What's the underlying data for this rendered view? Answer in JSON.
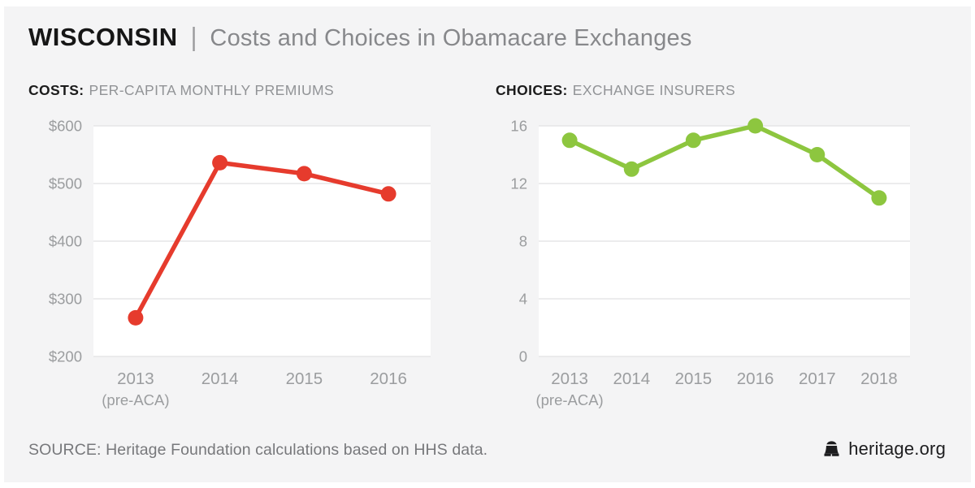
{
  "header": {
    "region": "WISCONSIN",
    "separator": "|",
    "subtitle": "Costs and Choices in Obamacare Exchanges"
  },
  "sections": {
    "costs_bold": "COSTS:",
    "costs_rest": "PER-CAPITA MONTHLY PREMIUMS",
    "choices_bold": "CHOICES:",
    "choices_rest": "EXCHANGE INSURERS"
  },
  "footer": {
    "source": "SOURCE: Heritage Foundation calculations based on HHS data.",
    "brand": "heritage.org",
    "brand_icon": "liberty-bell-icon"
  },
  "colors": {
    "page": "#ffffff",
    "panel_background": "#f4f4f5",
    "plot_background": "#ffffff",
    "gridline": "#e5e5e7",
    "axis_text": "#9b9d9f",
    "title_text": "#161616",
    "subtitle_text": "#87888b",
    "costs_red": "#e63b2d",
    "choices_green": "#8dc63f",
    "footer_text": "#77787b",
    "brand_text": "#1d1d1f"
  },
  "chart_data": [
    {
      "name": "costs",
      "type": "line",
      "title": "COSTS: PER-CAPITA MONTHLY PREMIUMS",
      "categories": [
        "2013",
        "2014",
        "2015",
        "2016"
      ],
      "category_note": {
        "index": 0,
        "text": "(pre-ACA)"
      },
      "values": [
        267,
        536,
        517,
        482
      ],
      "ylim": [
        200,
        600
      ],
      "yticks": [
        600,
        500,
        400,
        300,
        200
      ],
      "ytick_labels": [
        "$600",
        "$500",
        "$400",
        "$300",
        "$200"
      ],
      "xlabel": "",
      "ylabel": "",
      "grid": true,
      "legend_position": "none",
      "line_color": "#e63b2d"
    },
    {
      "name": "choices",
      "type": "line",
      "title": "CHOICES: EXCHANGE INSURERS",
      "categories": [
        "2013",
        "2014",
        "2015",
        "2016",
        "2017",
        "2018"
      ],
      "category_note": {
        "index": 0,
        "text": "(pre-ACA)"
      },
      "values": [
        15,
        13,
        15,
        16,
        14,
        11
      ],
      "ylim": [
        0,
        16
      ],
      "yticks": [
        16,
        12,
        8,
        4,
        0
      ],
      "ytick_labels": [
        "16",
        "12",
        "8",
        "4",
        "0"
      ],
      "xlabel": "",
      "ylabel": "",
      "grid": true,
      "legend_position": "none",
      "line_color": "#8dc63f"
    }
  ]
}
